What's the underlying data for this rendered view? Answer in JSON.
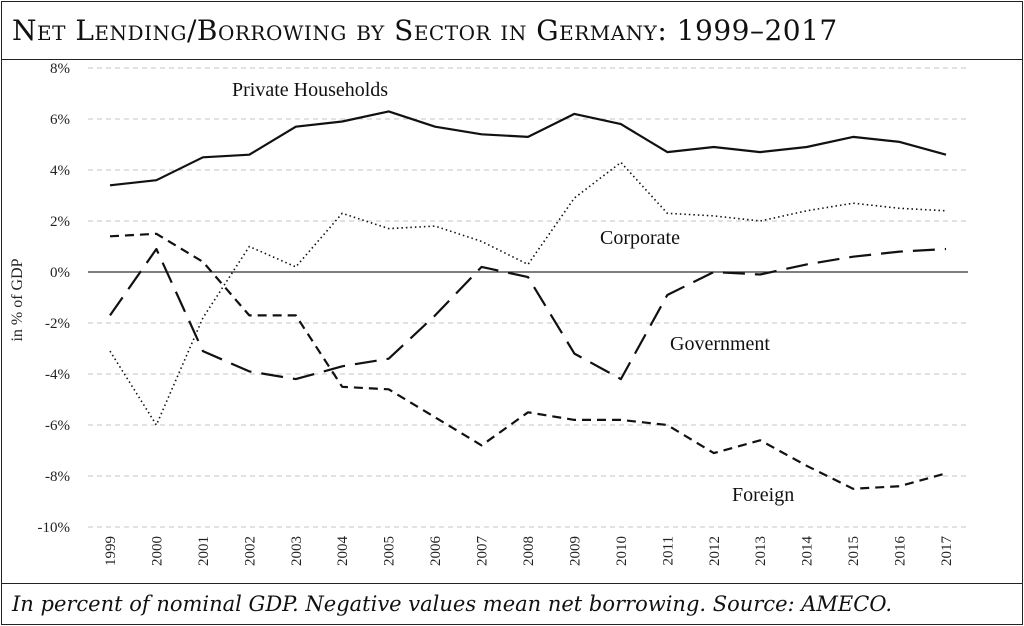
{
  "chart_data": {
    "type": "line",
    "title": "Net Lending/Borrowing by Sector in Germany: 1999–2017",
    "xlabel": "",
    "ylabel": "in % of GDP",
    "footer": "In percent of nominal GDP. Negative values mean net borrowing. Source: AMECO.",
    "ylim": [
      -10,
      8
    ],
    "yticks": [
      -10,
      -8,
      -6,
      -4,
      -2,
      0,
      2,
      4,
      6,
      8
    ],
    "ytick_labels": [
      "-10%",
      "-8%",
      "-6%",
      "-4%",
      "-2%",
      "0%",
      "2%",
      "4%",
      "6%",
      "8%"
    ],
    "grid": true,
    "categories": [
      "1999",
      "2000",
      "2001",
      "2002",
      "2003",
      "2004",
      "2005",
      "2006",
      "2007",
      "2008",
      "2009",
      "2010",
      "2011",
      "2012",
      "2013",
      "2014",
      "2015",
      "2016",
      "2017"
    ],
    "series": [
      {
        "name": "Private Households",
        "style": "solid",
        "values": [
          3.4,
          3.6,
          4.5,
          4.6,
          5.7,
          5.9,
          6.3,
          5.7,
          5.4,
          5.3,
          6.2,
          5.8,
          4.7,
          4.9,
          4.7,
          4.9,
          5.3,
          5.1,
          4.6
        ]
      },
      {
        "name": "Corporate",
        "style": "dotted",
        "values": [
          -3.1,
          -6.0,
          -1.8,
          1.0,
          0.2,
          2.3,
          1.7,
          1.8,
          1.2,
          0.3,
          2.9,
          4.3,
          2.3,
          2.2,
          2.0,
          2.4,
          2.7,
          2.5,
          2.4
        ]
      },
      {
        "name": "Government",
        "style": "longdash",
        "values": [
          -1.7,
          0.9,
          -3.1,
          -3.9,
          -4.2,
          -3.7,
          -3.4,
          -1.7,
          0.2,
          -0.2,
          -3.2,
          -4.2,
          -0.9,
          0.0,
          -0.1,
          0.3,
          0.6,
          0.8,
          0.9
        ]
      },
      {
        "name": "Foreign",
        "style": "dashed",
        "values": [
          1.4,
          1.5,
          0.4,
          -1.7,
          -1.7,
          -4.5,
          -4.6,
          -5.7,
          -6.8,
          -5.5,
          -5.8,
          -5.8,
          -6.0,
          -7.1,
          -6.6,
          -7.6,
          -8.5,
          -8.4,
          -7.9
        ]
      }
    ],
    "annotations": [
      "Private Households",
      "Corporate",
      "Government",
      "Foreign"
    ]
  }
}
